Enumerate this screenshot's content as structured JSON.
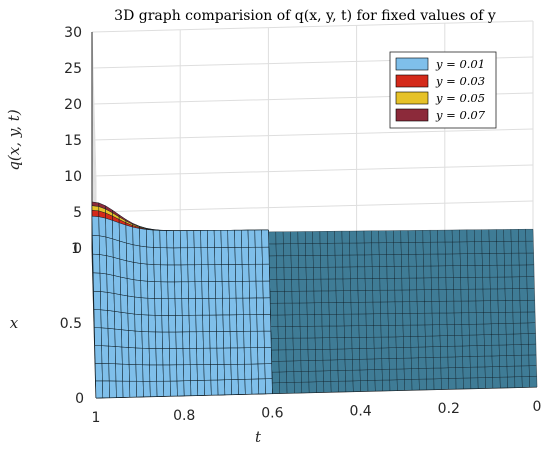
{
  "chart_data": {
    "type": "surface",
    "title": "3D graph comparision of q(x, y, t) for fixed values of y",
    "xlabel": "t",
    "ylabel": "x",
    "zlabel": "q(x, y, t)",
    "t_ticks": [
      "1",
      "0.8",
      "0.6",
      "0.4",
      "0.2",
      "0"
    ],
    "x_ticks": [
      "0",
      "0.5",
      "1"
    ],
    "z_ticks": [
      "0",
      "5",
      "10",
      "15",
      "20",
      "25",
      "30"
    ],
    "t_range": [
      0,
      1
    ],
    "x_range": [
      0,
      1
    ],
    "z_range": [
      0,
      30
    ],
    "grid": true,
    "legend_position": "top-right",
    "series": [
      {
        "name": "y = 0.01",
        "color": "#7fbfea",
        "peak": 2.0
      },
      {
        "name": "y = 0.03",
        "color": "#d42a1a",
        "peak": 2.5
      },
      {
        "name": "y = 0.05",
        "color": "#e6c229",
        "peak": 2.8
      },
      {
        "name": "y = 0.07",
        "color": "#8c2a3a",
        "peak": 3.0
      }
    ],
    "surface_color": "#3f7c96"
  }
}
